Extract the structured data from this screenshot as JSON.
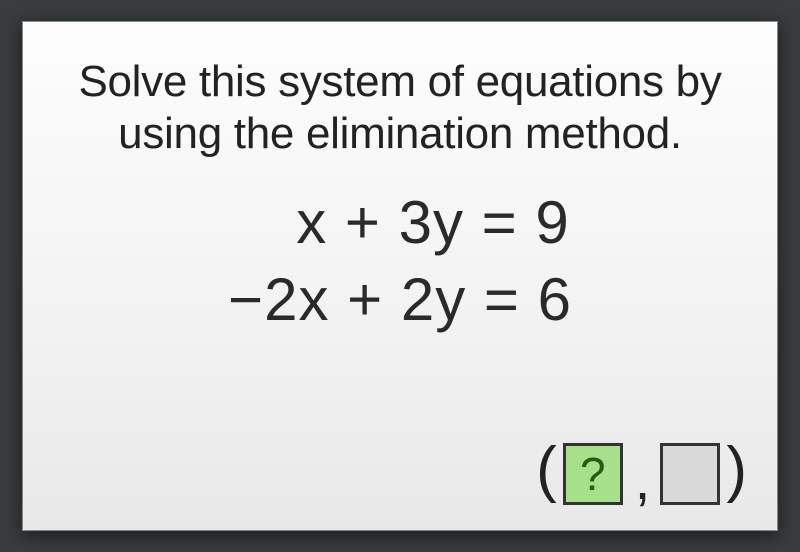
{
  "card": {
    "prompt_line1": "Solve this system of equations by",
    "prompt_line2": "using the elimination method.",
    "equation1": "x + 3y = 9",
    "equation2": "−2x + 2y = 6",
    "answer": {
      "open": "(",
      "close": ")",
      "comma": ",",
      "box1_text": "?",
      "box2_text": "",
      "box1_bg": "#a7e08b",
      "box1_fg": "#275a13",
      "box2_bg": "#d9d9d9",
      "box_border": "#333333"
    },
    "background_card": "#f4f4f4",
    "background_outer": "#3a3d3f",
    "text_color": "#222222"
  }
}
